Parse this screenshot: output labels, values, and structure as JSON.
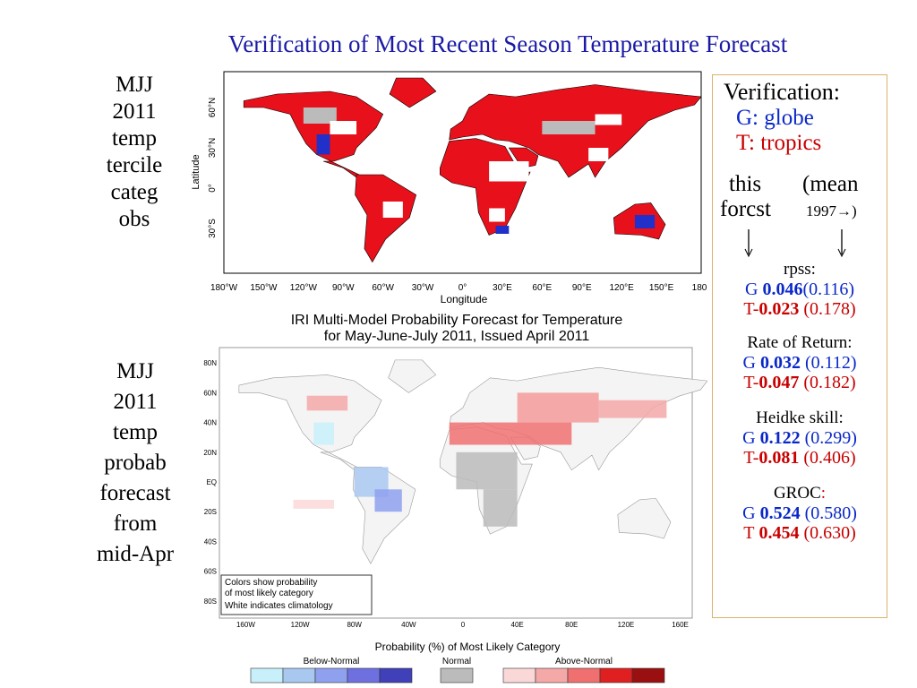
{
  "title": "Verification of Most Recent Season Temperature Forecast",
  "panels": [
    {
      "label_lines": [
        "MJJ",
        "2011",
        "temp",
        "tercile",
        "categ",
        "obs"
      ]
    },
    {
      "label_lines": [
        "MJJ",
        "2011",
        "temp",
        "probab",
        "forecast",
        "from",
        "mid-Apr"
      ]
    }
  ],
  "map1": {
    "lat_ticks": [
      "60°N",
      "30°N",
      "0°",
      "30°S"
    ],
    "lat_axis": "Latitude",
    "lon_ticks": [
      "180°W",
      "150°W",
      "120°W",
      "90°W",
      "60°W",
      "30°W",
      "0°",
      "30°E",
      "60°E",
      "90°E",
      "120°E",
      "150°E",
      "180°"
    ],
    "lon_axis": "Longitude"
  },
  "map2": {
    "title_lines": [
      "IRI Multi-Model Probability Forecast for Temperature",
      "for May-June-July 2011, Issued April 2011"
    ],
    "lat_ticks": [
      "80N",
      "60N",
      "40N",
      "20N",
      "EQ",
      "20S",
      "40S",
      "60S",
      "80S"
    ],
    "lon_ticks": [
      "160W",
      "120W",
      "80W",
      "40W",
      "0",
      "40E",
      "80E",
      "120E",
      "160E"
    ],
    "note_lines": [
      "Colors show probability",
      "of most likely category",
      "White indicates climatology"
    ],
    "colorbar": {
      "title": "Probability (%) of Most Likely Category",
      "groups": [
        "Below-Normal",
        "Normal",
        "Above-Normal"
      ]
    }
  },
  "verification": {
    "heading": "Verification:",
    "globe": "G: globe",
    "tropics": "T: tropics",
    "col_this": [
      "this",
      "forcst"
    ],
    "col_mean": [
      "(mean",
      "1997→)"
    ],
    "metrics": [
      {
        "name": "rpss:",
        "rows": [
          {
            "prefix": "G",
            "value": "0.046",
            "mean": "(0.116)"
          },
          {
            "prefix": "T-",
            "value": "0.023",
            "mean": "(0.178)"
          }
        ]
      },
      {
        "name": "Rate of Return:",
        "rows": [
          {
            "prefix": "G",
            "value": "0.032",
            "mean": "(0.112)"
          },
          {
            "prefix": "T-",
            "value": "0.047",
            "mean": "(0.182)"
          }
        ]
      },
      {
        "name": "Heidke skill:",
        "rows": [
          {
            "prefix": "G",
            "value": "0.122",
            "mean": "(0.299)"
          },
          {
            "prefix": "T-",
            "value": "0.081",
            "mean": "(0.406)"
          }
        ]
      },
      {
        "name": "GROC",
        "colon": ":",
        "rows": [
          {
            "prefix": "G",
            "value": "0.524",
            "mean": "(0.580)"
          },
          {
            "prefix": "T",
            "value": "0.454",
            "mean": "(0.630)"
          }
        ]
      }
    ]
  }
}
